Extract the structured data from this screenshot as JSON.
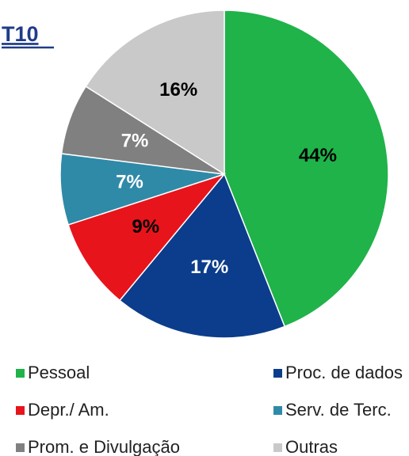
{
  "chart_data": {
    "type": "pie",
    "title": "T10",
    "categories": [
      "Pessoal",
      "Proc. de dados",
      "Depr./ Am.",
      "Serv. de Terc.",
      "Prom. e Divulgação",
      "Outras"
    ],
    "values": [
      44,
      17,
      9,
      7,
      7,
      16
    ],
    "colors": [
      "#1fb34a",
      "#0b3d8c",
      "#e8141c",
      "#2f8aa8",
      "#808080",
      "#c9c9c9"
    ],
    "label_colors": [
      "#000000",
      "#ffffff",
      "#000000",
      "#ffffff",
      "#ffffff",
      "#000000"
    ],
    "value_labels": [
      "44%",
      "17%",
      "9%",
      "7%",
      "7%",
      "16%"
    ]
  }
}
